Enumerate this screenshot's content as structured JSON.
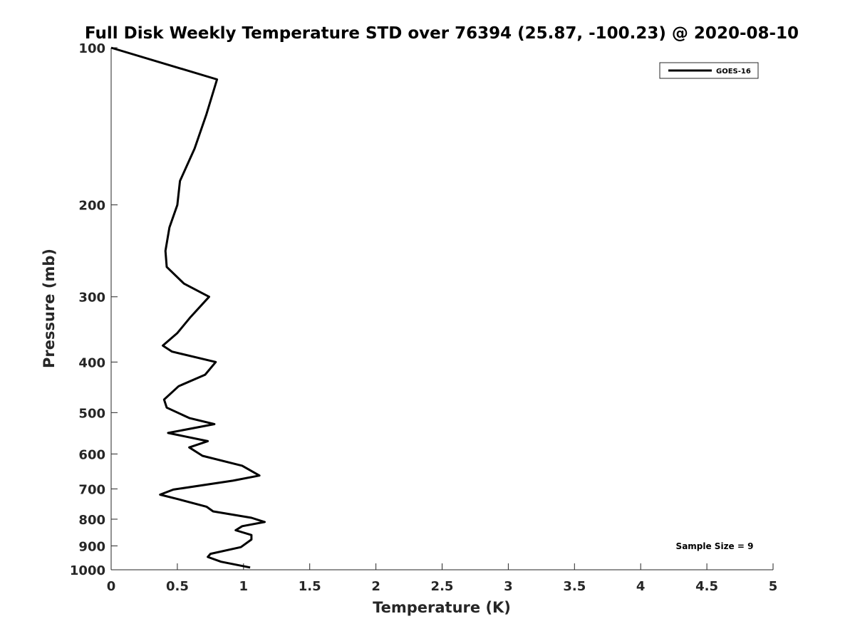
{
  "chart_data": {
    "type": "line",
    "title": "Full Disk Weekly Temperature STD over 76394 (25.87, -100.23) @ 2020-08-10",
    "xlabel": "Temperature (K)",
    "ylabel": "Pressure (mb)",
    "xlim": [
      0,
      5
    ],
    "ylim": [
      100,
      1000
    ],
    "yscale": "log",
    "y_reversed": true,
    "x_ticks": [
      "0",
      "0.5",
      "1",
      "1.5",
      "2",
      "2.5",
      "3",
      "3.5",
      "4",
      "4.5",
      "5"
    ],
    "y_ticks": [
      "100",
      "200",
      "300",
      "400",
      "500",
      "600",
      "700",
      "800",
      "900",
      "1000"
    ],
    "grid": false,
    "legend_position": "top-right",
    "annotation": "Sample Size = 9",
    "series": [
      {
        "name": "GOES-16",
        "color": "#000000",
        "x": [
          0.0,
          0.8,
          0.72,
          0.63,
          0.52,
          0.5,
          0.44,
          0.41,
          0.42,
          0.55,
          0.74,
          0.6,
          0.5,
          0.39,
          0.46,
          0.79,
          0.71,
          0.51,
          0.4,
          0.42,
          0.59,
          0.78,
          0.43,
          0.73,
          0.59,
          0.69,
          0.99,
          1.12,
          0.92,
          0.47,
          0.37,
          0.51,
          0.72,
          0.77,
          1.06,
          1.16,
          0.99,
          0.94,
          1.06,
          1.06,
          0.98,
          0.75,
          0.73,
          0.83,
          1.05
        ],
        "y": [
          100,
          115,
          134,
          156,
          180,
          200,
          221,
          245,
          263,
          283,
          300,
          328,
          352,
          372,
          382,
          400,
          423,
          445,
          472,
          489,
          512,
          526,
          547,
          567,
          583,
          605,
          632,
          660,
          675,
          702,
          718,
          733,
          757,
          773,
          795,
          810,
          825,
          840,
          858,
          875,
          905,
          932,
          945,
          965,
          990
        ]
      }
    ]
  }
}
